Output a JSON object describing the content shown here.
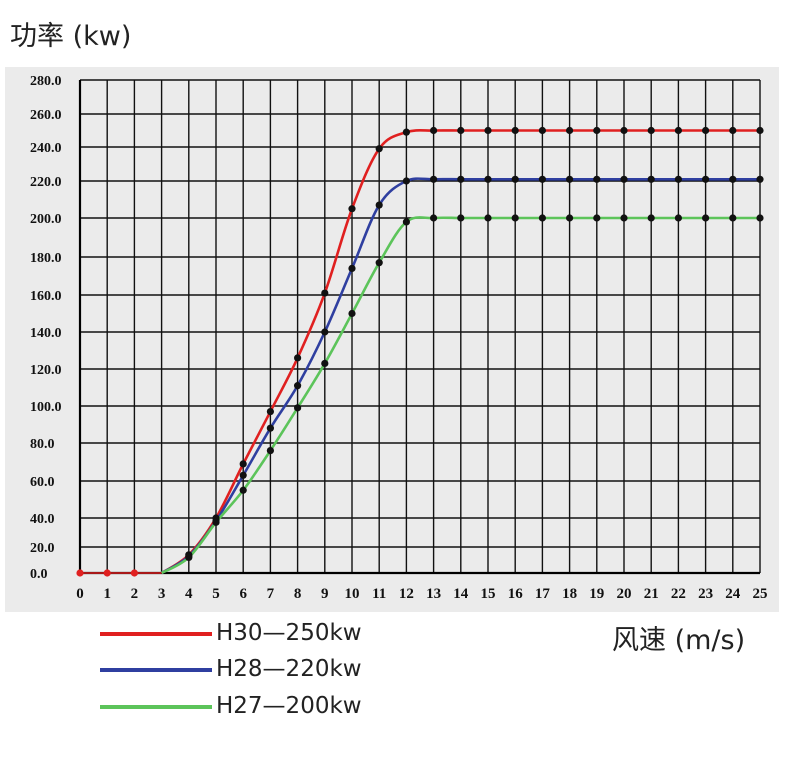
{
  "chart_data": {
    "type": "line",
    "ylabel": "功率 (kw)",
    "xlabel": "风速 (m/s)",
    "xlim": [
      0,
      25
    ],
    "ylim": [
      0,
      280
    ],
    "x_ticks": [
      0,
      1,
      2,
      3,
      4,
      5,
      6,
      7,
      8,
      9,
      10,
      11,
      12,
      13,
      14,
      15,
      16,
      17,
      18,
      19,
      20,
      21,
      22,
      23,
      24,
      25
    ],
    "y_tick_labels": [
      "0.0",
      "20.0",
      "40.0",
      "60.0",
      "80.0",
      "100.0",
      "120.0",
      "140.0",
      "160.0",
      "180.0",
      "200.0",
      "220.0",
      "240.0",
      "260.0",
      "280.0"
    ],
    "grid": true,
    "legend_position": "bottom-left",
    "zero_points": {
      "x": [
        0,
        1,
        2
      ],
      "y": [
        0,
        0,
        0
      ],
      "color": "#e02020"
    },
    "series": [
      {
        "name": "H30—250kw",
        "color": "#e02020",
        "x": [
          3,
          4,
          5,
          6,
          7,
          8,
          9,
          10,
          11,
          12,
          13,
          14,
          15,
          16,
          17,
          18,
          19,
          20,
          21,
          22,
          23,
          24,
          25
        ],
        "y": [
          0,
          14,
          40,
          69,
          97,
          126,
          161,
          205,
          239,
          249,
          250,
          250,
          250,
          250,
          250,
          250,
          250,
          250,
          250,
          250,
          250,
          250,
          250
        ]
      },
      {
        "name": "H28—220kw",
        "color": "#2f3fa0",
        "x": [
          3,
          4,
          5,
          6,
          7,
          8,
          9,
          10,
          11,
          12,
          13,
          14,
          15,
          16,
          17,
          18,
          19,
          20,
          21,
          22,
          23,
          24,
          25
        ],
        "y": [
          0,
          13,
          38,
          63,
          88,
          111,
          140,
          174,
          207,
          220,
          221,
          221,
          221,
          221,
          221,
          221,
          221,
          221,
          221,
          221,
          221,
          221,
          221
        ]
      },
      {
        "name": "H27—200kw",
        "color": "#5cc45a",
        "x": [
          3,
          4,
          5,
          6,
          7,
          8,
          9,
          10,
          11,
          12,
          13,
          14,
          15,
          16,
          17,
          18,
          19,
          20,
          21,
          22,
          23,
          24,
          25
        ],
        "y": [
          0,
          12,
          37,
          55,
          76,
          99,
          123,
          150,
          177,
          198,
          200,
          200,
          200,
          200,
          200,
          200,
          200,
          200,
          200,
          200,
          200,
          200,
          200
        ]
      }
    ]
  }
}
